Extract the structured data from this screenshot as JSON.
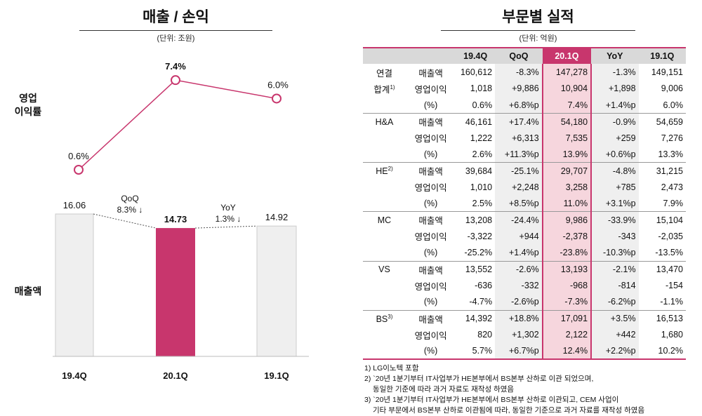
{
  "left": {
    "title": "매출 / 손익",
    "unit": "(단위: 조원)",
    "margin_label": [
      "영업",
      "이익률"
    ],
    "sales_label": "매출액",
    "qoq_label": "QoQ",
    "qoq_value": "8.3% ↓",
    "yoy_label": "YoY",
    "yoy_value": "1.3% ↓"
  },
  "chart_data": [
    {
      "type": "line",
      "categories": [
        "19.4Q",
        "20.1Q",
        "19.1Q"
      ],
      "values": [
        0.6,
        7.4,
        6.0
      ],
      "labels": [
        "0.6%",
        "7.4%",
        "6.0%"
      ],
      "ylabel": "영업 이익률",
      "color": "#c8366d"
    },
    {
      "type": "bar",
      "categories": [
        "19.4Q",
        "20.1Q",
        "19.1Q"
      ],
      "values": [
        16.06,
        14.73,
        14.92
      ],
      "labels": [
        "16.06",
        "14.73",
        "14.92"
      ],
      "ylabel": "매출액",
      "colors": [
        "#efefef",
        "#c8366d",
        "#efefef"
      ]
    }
  ],
  "right": {
    "title": "부문별 실적",
    "unit": "(단위: 억원)",
    "headers": [
      "19.4Q",
      "QoQ",
      "20.1Q",
      "YoY",
      "19.1Q"
    ],
    "groups": [
      {
        "name": "연결",
        "name2": "합계",
        "sup": "1)",
        "rows": [
          [
            "매출액",
            "160,612",
            "-8.3%",
            "147,278",
            "-1.3%",
            "149,151"
          ],
          [
            "영업이익",
            "1,018",
            "+9,886",
            "10,904",
            "+1,898",
            "9,006"
          ],
          [
            "(%)",
            "0.6%",
            "+6.8%p",
            "7.4%",
            "+1.4%p",
            "6.0%"
          ]
        ]
      },
      {
        "name": "H&A",
        "sup": "",
        "rows": [
          [
            "매출액",
            "46,161",
            "+17.4%",
            "54,180",
            "-0.9%",
            "54,659"
          ],
          [
            "영업이익",
            "1,222",
            "+6,313",
            "7,535",
            "+259",
            "7,276"
          ],
          [
            "(%)",
            "2.6%",
            "+11.3%p",
            "13.9%",
            "+0.6%p",
            "13.3%"
          ]
        ]
      },
      {
        "name": "HE",
        "sup": "2)",
        "rows": [
          [
            "매출액",
            "39,684",
            "-25.1%",
            "29,707",
            "-4.8%",
            "31,215"
          ],
          [
            "영업이익",
            "1,010",
            "+2,248",
            "3,258",
            "+785",
            "2,473"
          ],
          [
            "(%)",
            "2.5%",
            "+8.5%p",
            "11.0%",
            "+3.1%p",
            "7.9%"
          ]
        ]
      },
      {
        "name": "MC",
        "sup": "",
        "rows": [
          [
            "매출액",
            "13,208",
            "-24.4%",
            "9,986",
            "-33.9%",
            "15,104"
          ],
          [
            "영업이익",
            "-3,322",
            "+944",
            "-2,378",
            "-343",
            "-2,035"
          ],
          [
            "(%)",
            "-25.2%",
            "+1.4%p",
            "-23.8%",
            "-10.3%p",
            "-13.5%"
          ]
        ]
      },
      {
        "name": "VS",
        "sup": "",
        "rows": [
          [
            "매출액",
            "13,552",
            "-2.6%",
            "13,193",
            "-2.1%",
            "13,470"
          ],
          [
            "영업이익",
            "-636",
            "-332",
            "-968",
            "-814",
            "-154"
          ],
          [
            "(%)",
            "-4.7%",
            "-2.6%p",
            "-7.3%",
            "-6.2%p",
            "-1.1%"
          ]
        ]
      },
      {
        "name": "BS",
        "sup": "3)",
        "rows": [
          [
            "매출액",
            "14,392",
            "+18.8%",
            "17,091",
            "+3.5%",
            "16,513"
          ],
          [
            "영업이익",
            "820",
            "+1,302",
            "2,122",
            "+442",
            "1,680"
          ],
          [
            "(%)",
            "5.7%",
            "+6.7%p",
            "12.4%",
            "+2.2%p",
            "10.2%"
          ]
        ]
      }
    ],
    "notes": [
      "1) LG이노텍 포함",
      "2) `20년 1분기부터 IT사업부가 HE본부에서 BS본부 산하로 이관 되었으며,",
      "동일한 기준에 따라 과거 자료도 재작성 하였음",
      "3) `20년 1분기부터 IT사업부가 HE본부에서 BS본부 산하로 이관되고, CEM 사업이",
      "기타 부문에서 BS본부 산하로 이관됨에 따라, 동일한 기준으로 과거 자료를 재작성 하였음"
    ]
  }
}
